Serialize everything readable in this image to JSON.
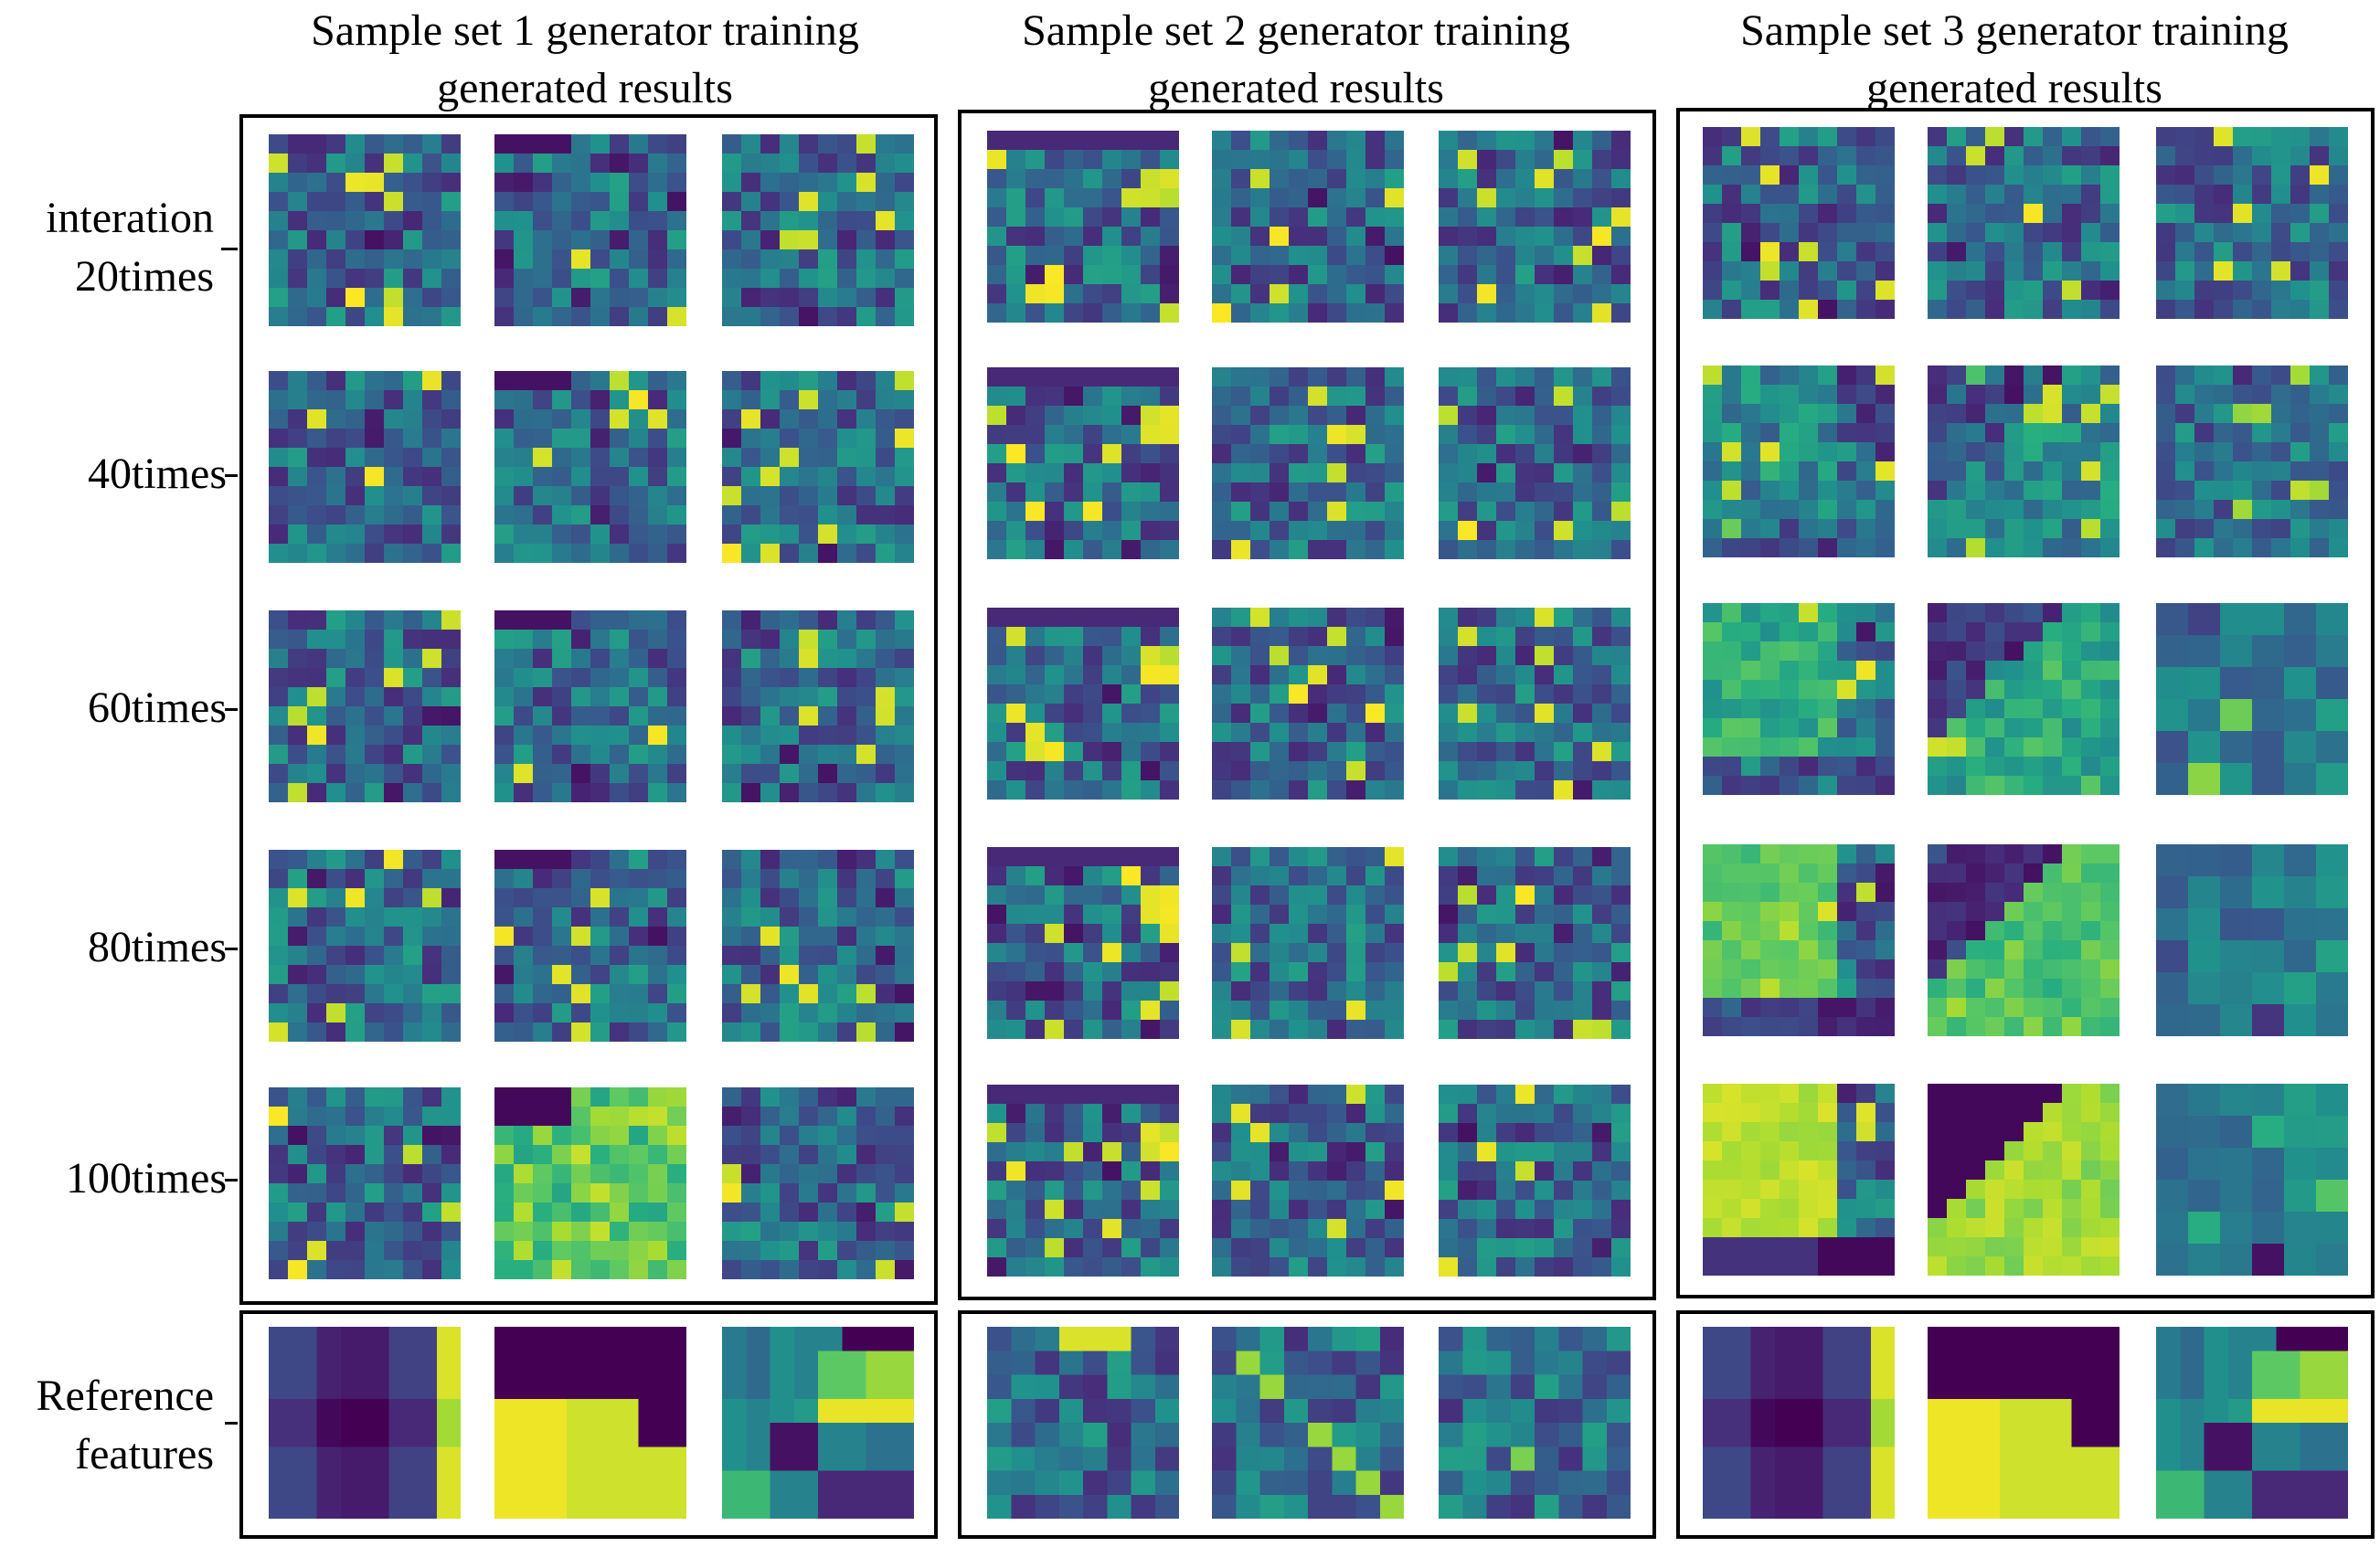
{
  "figure": {
    "column_titles": [
      {
        "line1": "Sample set 1 generator training",
        "line2": "generated results"
      },
      {
        "line1": "Sample set 2 generator training",
        "line2": "generated results"
      },
      {
        "line1": "Sample set 3 generator training",
        "line2": "generated results"
      }
    ],
    "row_labels": [
      {
        "line1": "interation",
        "line2": "20times"
      },
      {
        "line1": "40times",
        "line2": ""
      },
      {
        "line1": "60times",
        "line2": ""
      },
      {
        "line1": "80times",
        "line2": ""
      },
      {
        "line1": "100times",
        "line2": ""
      }
    ],
    "reference_label": {
      "line1": "Reference",
      "line2": "features"
    },
    "colormap": "viridis",
    "colors": {
      "border": "#000000",
      "viridis_dark": "#440154",
      "viridis_mid": "#21918c",
      "viridis_bright": "#fde725"
    },
    "sample_sets": 3,
    "iterations_shown": 5,
    "samples_per_set": 3
  }
}
